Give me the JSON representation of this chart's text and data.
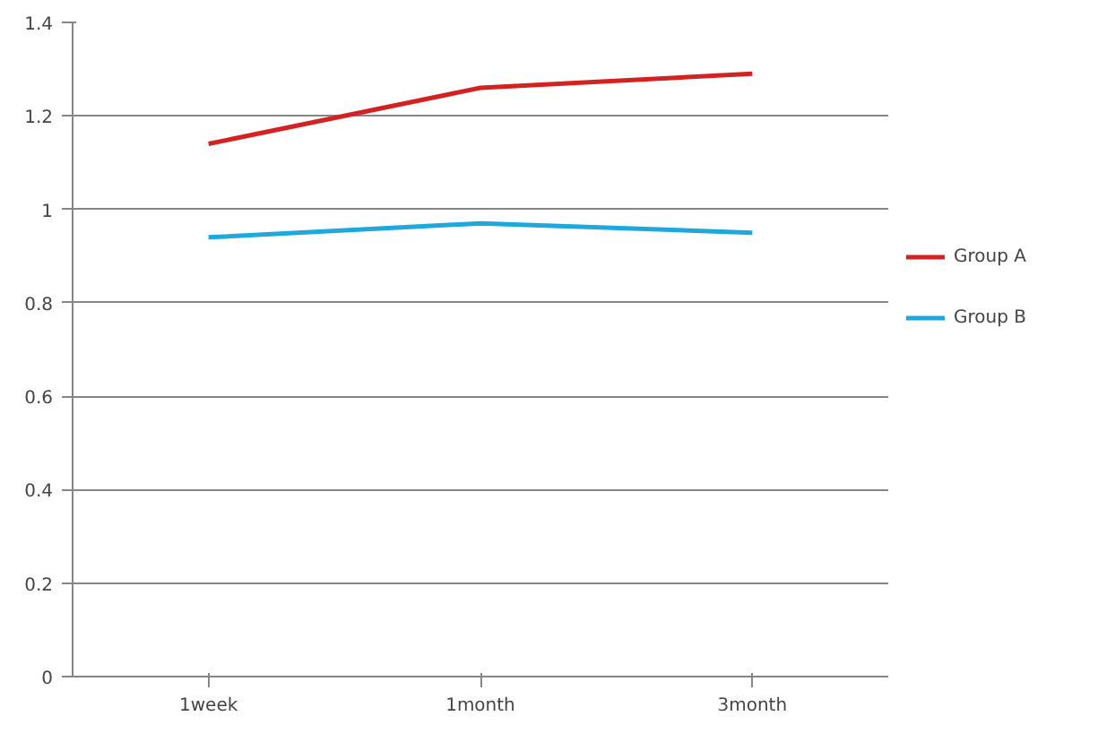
{
  "chart_data": {
    "type": "line",
    "categories": [
      "1week",
      "1month",
      "3month"
    ],
    "series": [
      {
        "name": "Group A",
        "color": "#d42222",
        "values": [
          1.14,
          1.26,
          1.29
        ]
      },
      {
        "name": "Group B",
        "color": "#1ea8dc",
        "values": [
          0.94,
          0.97,
          0.95
        ]
      }
    ],
    "ylim": [
      0,
      1.4
    ],
    "yticks": [
      0,
      0.2,
      0.4,
      0.6,
      0.8,
      1,
      1.2,
      1.4
    ],
    "grid": "y",
    "legend": "right",
    "marker": "none",
    "line_style": "solid"
  }
}
